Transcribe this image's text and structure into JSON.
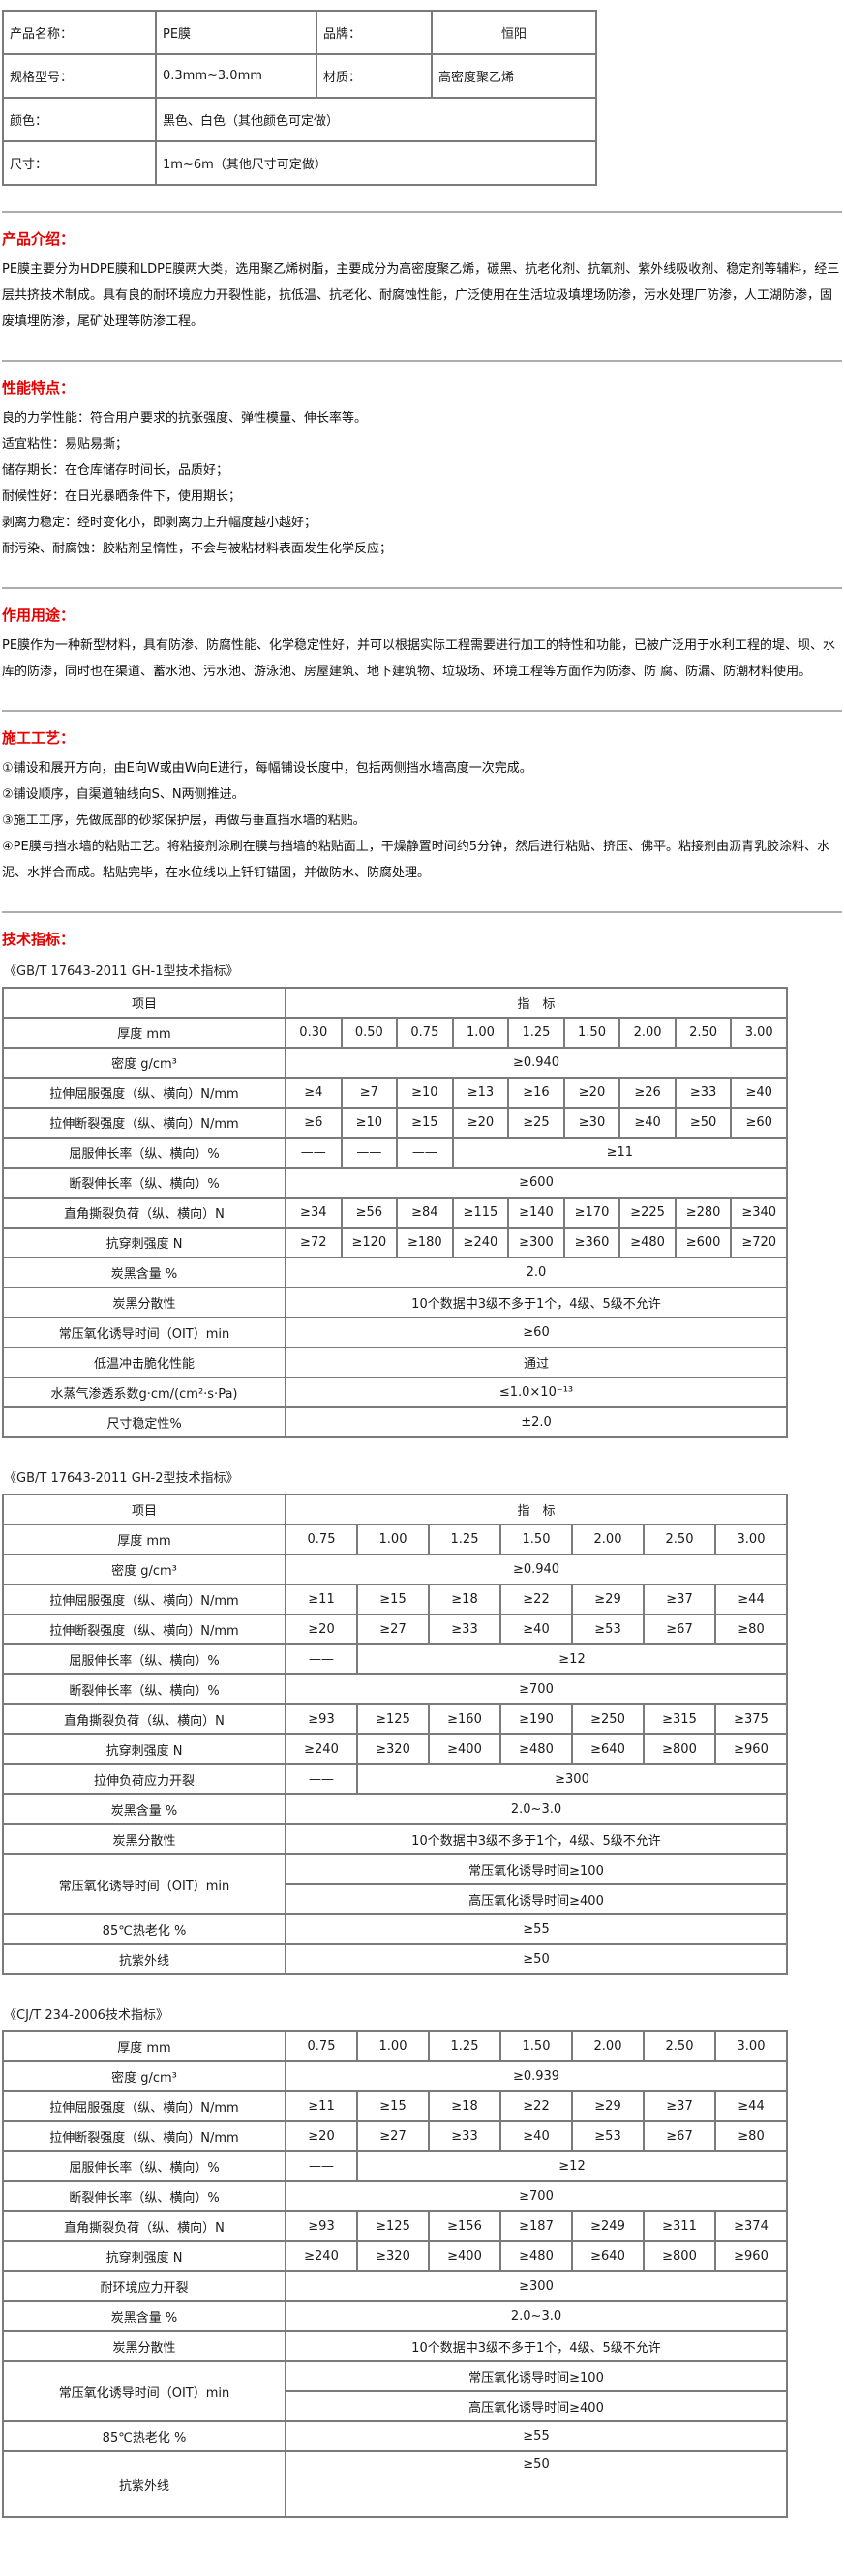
{
  "colors": {
    "accent_red": "#e60000",
    "table_border": "#7b7b7b",
    "divider_gray": "#adadad",
    "text": "#111111"
  },
  "info_table": {
    "rows": [
      [
        {
          "t": "产品名称：",
          "label": true
        },
        {
          "t": "PE膜"
        },
        {
          "t": "品牌：",
          "label": true
        },
        {
          "t": "恒阳",
          "center": true
        }
      ],
      [
        {
          "t": "规格型号：",
          "label": true
        },
        {
          "t": "0.3mm~3.0mm"
        },
        {
          "t": "材质：",
          "label": true
        },
        {
          "t": "高密度聚乙烯"
        }
      ],
      [
        {
          "t": "颜色：",
          "label": true
        },
        {
          "t": "黑色、白色（其他颜色可定做）",
          "colspan": 3
        }
      ],
      [
        {
          "t": "尺寸：",
          "label": true
        },
        {
          "t": "1m~6m（其他尺寸可定做）",
          "colspan": 3
        }
      ]
    ]
  },
  "sections": {
    "intro": {
      "heading": "产品介绍：",
      "paragraphs": [
        "PE膜主要分为HDPE膜和LDPE膜两大类，选用聚乙烯树脂，主要成分为高密度聚乙烯，碳黑、抗老化剂、抗氧剂、紫外线吸收剂、稳定剂等辅料，经三层共挤技术制成。具有良的耐环境应力开裂性能，抗低温、抗老化、耐腐蚀性能，广泛使用在生活垃圾填埋场防渗，污水处理厂防渗，人工湖防渗，固废填埋防渗，尾矿处理等防渗工程。"
      ]
    },
    "features": {
      "heading": "性能特点：",
      "paragraphs": [
        "良的力学性能：符合用户要求的抗张强度、弹性模量、伸长率等。",
        "适宜粘性：易贴易撕；",
        "储存期长：在仓库储存时间长，品质好；",
        "耐候性好：在日光暴晒条件下，使用期长；",
        "剥离力稳定：经时变化小，即剥离力上升幅度越小越好；",
        "耐污染、耐腐蚀：胶粘剂呈惰性，不会与被粘材料表面发生化学反应；"
      ]
    },
    "usage": {
      "heading": "作用用途：",
      "paragraphs": [
        "PE膜作为一种新型材料，具有防渗、防腐性能、化学稳定性好，并可以根据实际工程需要进行加工的特性和功能，已被广泛用于水利工程的堤、坝、水库的防渗，同时也在渠道、蓄水池、污水池、游泳池、房屋建筑、地下建筑物、垃圾场、环境工程等方面作为防渗、防 腐、防漏、防潮材料使用。"
      ]
    },
    "process": {
      "heading": "施工工艺：",
      "paragraphs": [
        "①铺设和展开方向，由E向W或由W向E进行，每幅铺设长度中，包括两侧挡水墙高度一次完成。",
        "②铺设顺序，自渠道轴线向S、N两侧推进。",
        "③施工工序，先做底部的砂浆保护层，再做与垂直挡水墙的粘贴。",
        "④PE膜与挡水墙的粘贴工艺。将粘接剂涂刷在膜与挡墙的粘贴面上，干燥静置时间约5分钟，然后进行粘贴、挤压、佛平。粘接剂由沥青乳胶涂料、水泥、水拌合而成。粘贴完毕，在水位线以上钎钉锚固，并做防水、防腐处理。"
      ]
    },
    "tech": {
      "heading": "技术指标："
    }
  },
  "spec_tables": [
    {
      "title": "《GB/T 17643-2011 GH-1型技术指标》",
      "data_cols": 9,
      "header": [
        "项目",
        "指　标"
      ],
      "rows": [
        {
          "label": "厚度 mm",
          "cells": [
            "0.30",
            "0.50",
            "0.75",
            "1.00",
            "1.25",
            "1.50",
            "2.00",
            "2.50",
            "3.00"
          ]
        },
        {
          "label": "密度 g/cm³",
          "cells": [
            {
              "t": "≥0.940",
              "span": 9
            }
          ]
        },
        {
          "label": "拉伸屈服强度（纵、横向）N/mm",
          "cells": [
            "≥4",
            "≥7",
            "≥10",
            "≥13",
            "≥16",
            "≥20",
            "≥26",
            "≥33",
            "≥40"
          ]
        },
        {
          "label": "拉伸断裂强度（纵、横向）N/mm",
          "cells": [
            "≥6",
            "≥10",
            "≥15",
            "≥20",
            "≥25",
            "≥30",
            "≥40",
            "≥50",
            "≥60"
          ]
        },
        {
          "label": "屈服伸长率（纵、横向）%",
          "cells": [
            "——",
            "——",
            "——",
            {
              "t": "≥11",
              "span": 6
            }
          ]
        },
        {
          "label": "断裂伸长率（纵、横向）%",
          "cells": [
            {
              "t": "≥600",
              "span": 9
            }
          ]
        },
        {
          "label": "直角撕裂负荷（纵、横向）N",
          "cells": [
            "≥34",
            "≥56",
            "≥84",
            "≥115",
            "≥140",
            "≥170",
            "≥225",
            "≥280",
            "≥340"
          ]
        },
        {
          "label": "抗穿刺强度 N",
          "cells": [
            "≥72",
            "≥120",
            "≥180",
            "≥240",
            "≥300",
            "≥360",
            "≥480",
            "≥600",
            "≥720"
          ]
        },
        {
          "label": "炭黑含量 %",
          "cells": [
            {
              "t": "2.0",
              "span": 9
            }
          ]
        },
        {
          "label": "炭黑分散性",
          "cells": [
            {
              "t": "10个数据中3级不多于1个，4级、5级不允许",
              "span": 9
            }
          ]
        },
        {
          "label": "常压氧化诱导时间（OIT）min",
          "cells": [
            {
              "t": "≥60",
              "span": 9
            }
          ]
        },
        {
          "label": "低温冲击脆化性能",
          "cells": [
            {
              "t": "通过",
              "span": 9
            }
          ]
        },
        {
          "label": "水蒸气渗透系数g·cm/(cm²·s·Pa)",
          "cells": [
            {
              "t": "≤1.0×10⁻¹³",
              "span": 9
            }
          ]
        },
        {
          "label": "尺寸稳定性%",
          "cells": [
            {
              "t": "±2.0",
              "span": 9
            }
          ]
        }
      ]
    },
    {
      "title": "《GB/T 17643-2011 GH-2型技术指标》",
      "data_cols": 7,
      "header": [
        "项目",
        "指　标"
      ],
      "rows": [
        {
          "label": "厚度 mm",
          "cells": [
            "0.75",
            "1.00",
            "1.25",
            "1.50",
            "2.00",
            "2.50",
            "3.00"
          ]
        },
        {
          "label": "密度 g/cm³",
          "cells": [
            {
              "t": "≥0.940",
              "span": 7
            }
          ]
        },
        {
          "label": "拉伸屈服强度（纵、横向）N/mm",
          "cells": [
            "≥11",
            "≥15",
            "≥18",
            "≥22",
            "≥29",
            "≥37",
            "≥44"
          ]
        },
        {
          "label": "拉伸断裂强度（纵、横向）N/mm",
          "cells": [
            "≥20",
            "≥27",
            "≥33",
            "≥40",
            "≥53",
            "≥67",
            "≥80"
          ]
        },
        {
          "label": "屈服伸长率（纵、横向）%",
          "cells": [
            "——",
            {
              "t": "≥12",
              "span": 6
            }
          ]
        },
        {
          "label": "断裂伸长率（纵、横向）%",
          "cells": [
            {
              "t": "≥700",
              "span": 7
            }
          ]
        },
        {
          "label": "直角撕裂负荷（纵、横向）N",
          "cells": [
            "≥93",
            "≥125",
            "≥160",
            "≥190",
            "≥250",
            "≥315",
            "≥375"
          ]
        },
        {
          "label": "抗穿刺强度 N",
          "cells": [
            "≥240",
            "≥320",
            "≥400",
            "≥480",
            "≥640",
            "≥800",
            "≥960"
          ]
        },
        {
          "label": "拉伸负荷应力开裂",
          "cells": [
            "——",
            {
              "t": "≥300",
              "span": 6
            }
          ]
        },
        {
          "label": "炭黑含量 %",
          "cells": [
            {
              "t": "2.0~3.0",
              "span": 7
            }
          ]
        },
        {
          "label": "炭黑分散性",
          "cells": [
            {
              "t": "10个数据中3级不多于1个，4级、5级不允许",
              "span": 7
            }
          ]
        },
        {
          "label": "常压氧化诱导时间（OIT）min",
          "stacked": [
            "常压氧化诱导时间≥100",
            "高压氧化诱导时间≥400"
          ]
        },
        {
          "label": "85℃热老化 %",
          "cells": [
            {
              "t": "≥55",
              "span": 7
            }
          ]
        },
        {
          "label": "抗紫外线",
          "cells": [
            {
              "t": "≥50",
              "span": 7
            }
          ]
        }
      ]
    },
    {
      "title": "《CJ/T 234-2006技术指标》",
      "data_cols": 7,
      "header": null,
      "rows": [
        {
          "label": "厚度 mm",
          "cells": [
            "0.75",
            "1.00",
            "1.25",
            "1.50",
            "2.00",
            "2.50",
            "3.00"
          ]
        },
        {
          "label": "密度 g/cm³",
          "cells": [
            {
              "t": "≥0.939",
              "span": 7
            }
          ]
        },
        {
          "label": "拉伸屈服强度（纵、横向）N/mm",
          "cells": [
            "≥11",
            "≥15",
            "≥18",
            "≥22",
            "≥29",
            "≥37",
            "≥44"
          ]
        },
        {
          "label": "拉伸断裂强度（纵、横向）N/mm",
          "cells": [
            "≥20",
            "≥27",
            "≥33",
            "≥40",
            "≥53",
            "≥67",
            "≥80"
          ]
        },
        {
          "label": "屈服伸长率（纵、横向）%",
          "cells": [
            "——",
            {
              "t": "≥12",
              "span": 6
            }
          ]
        },
        {
          "label": "断裂伸长率（纵、横向）%",
          "cells": [
            {
              "t": "≥700",
              "span": 7
            }
          ]
        },
        {
          "label": "直角撕裂负荷（纵、横向）N",
          "cells": [
            "≥93",
            "≥125",
            "≥156",
            "≥187",
            "≥249",
            "≥311",
            "≥374"
          ]
        },
        {
          "label": "抗穿刺强度 N",
          "cells": [
            "≥240",
            "≥320",
            "≥400",
            "≥480",
            "≥640",
            "≥800",
            "≥960"
          ]
        },
        {
          "label": "耐环境应力开裂",
          "cells": [
            {
              "t": "≥300",
              "span": 7
            }
          ]
        },
        {
          "label": "炭黑含量 %",
          "cells": [
            {
              "t": "2.0~3.0",
              "span": 7
            }
          ]
        },
        {
          "label": "炭黑分散性",
          "cells": [
            {
              "t": "10个数据中3级不多于1个，4级、5级不允许",
              "span": 7
            }
          ]
        },
        {
          "label": "常压氧化诱导时间（OIT）min",
          "stacked": [
            "常压氧化诱导时间≥100",
            "高压氧化诱导时间≥400"
          ]
        },
        {
          "label": "85℃热老化 %",
          "cells": [
            {
              "t": "≥55",
              "span": 7
            }
          ]
        },
        {
          "label": "抗紫外线",
          "cells": [
            {
              "t": "≥50",
              "span": 7
            }
          ],
          "tall": true
        }
      ]
    }
  ]
}
